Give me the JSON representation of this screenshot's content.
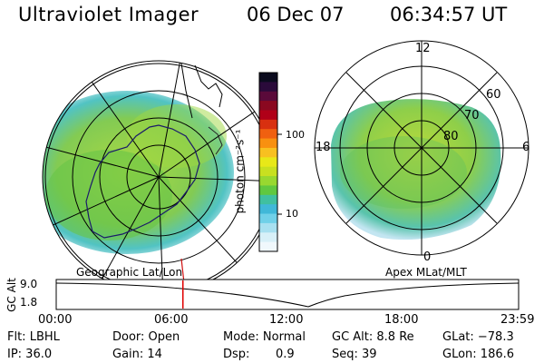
{
  "header": {
    "title": "Ultraviolet Imager",
    "date": "06 Dec 07",
    "time": "06:34:57 UT"
  },
  "left_map": {
    "caption": "Geographic Lat/Lon"
  },
  "right_map": {
    "caption": "Apex MLat/MLT",
    "mlt_labels": {
      "top": "12",
      "left": "18",
      "right": "6",
      "bottom": "0"
    },
    "lat_labels": [
      "60",
      "70",
      "80"
    ]
  },
  "colorbar": {
    "unit_label": "photon cm⁻²s⁻¹",
    "ticks": [
      "100",
      "10"
    ],
    "colors": [
      "#0b0b1e",
      "#2a0a3a",
      "#5a0a3a",
      "#8a0820",
      "#b00018",
      "#d83010",
      "#f06010",
      "#f89010",
      "#f8c020",
      "#e8e818",
      "#c8e020",
      "#98d830",
      "#60c840",
      "#40c0a0",
      "#40b8d8",
      "#70d0e8",
      "#a8e0f0",
      "#d8f0f8",
      "#f0f8fc"
    ]
  },
  "altitude_panel": {
    "axis_label": "GC Alt",
    "ticks": [
      "9.0",
      "1.8"
    ],
    "time_labels": [
      "00:00",
      "06:00",
      "12:00",
      "18:00",
      "23:59"
    ],
    "current_time_fraction": 0.274
  },
  "info": {
    "filter": "Flt: LBHL",
    "ip": "IP: 36.0",
    "door": "Door: Open",
    "gain": "Gain: 14",
    "mode": "Mode: Normal",
    "dsp_label": "Dsp:",
    "dsp_value": "0.9",
    "gc_alt": "GC Alt: 8.8 Re",
    "seq": "Seq: 39",
    "glat": "GLat: −78.3",
    "glon": "GLon: 186.6"
  }
}
